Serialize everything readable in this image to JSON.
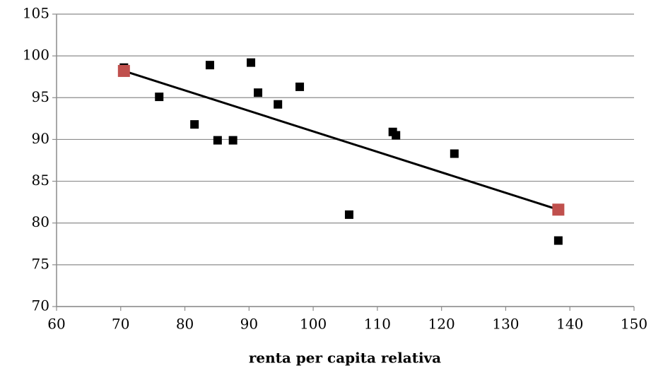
{
  "chart_data": {
    "type": "scatter",
    "x_label": "renta per capita relativa",
    "xlim": [
      60,
      150
    ],
    "xticks": [
      60,
      70,
      80,
      90,
      100,
      110,
      120,
      130,
      140,
      150
    ],
    "ylim": [
      70,
      105
    ],
    "yticks": [
      70,
      75,
      80,
      85,
      90,
      95,
      100,
      105
    ],
    "grid": true,
    "series": [
      {
        "color": "#000000",
        "marker": "square",
        "x": [
          70.5,
          76.0,
          81.5,
          83.9,
          85.1,
          87.5,
          90.3,
          91.4,
          94.5,
          97.9,
          105.6,
          112.4,
          112.9,
          122.0,
          138.2
        ],
        "values": [
          98.6,
          95.1,
          91.8,
          98.9,
          89.9,
          89.9,
          99.2,
          95.6,
          94.2,
          96.3,
          81.0,
          90.9,
          90.5,
          88.3,
          77.9
        ]
      },
      {
        "color": "#000000",
        "marker": "line",
        "x": [
          70.5,
          138.2
        ],
        "values": [
          98.2,
          81.6
        ]
      },
      {
        "color": "#c0504d",
        "marker": "square",
        "x": [
          70.5,
          138.2
        ],
        "values": [
          98.2,
          81.6
        ]
      }
    ]
  }
}
